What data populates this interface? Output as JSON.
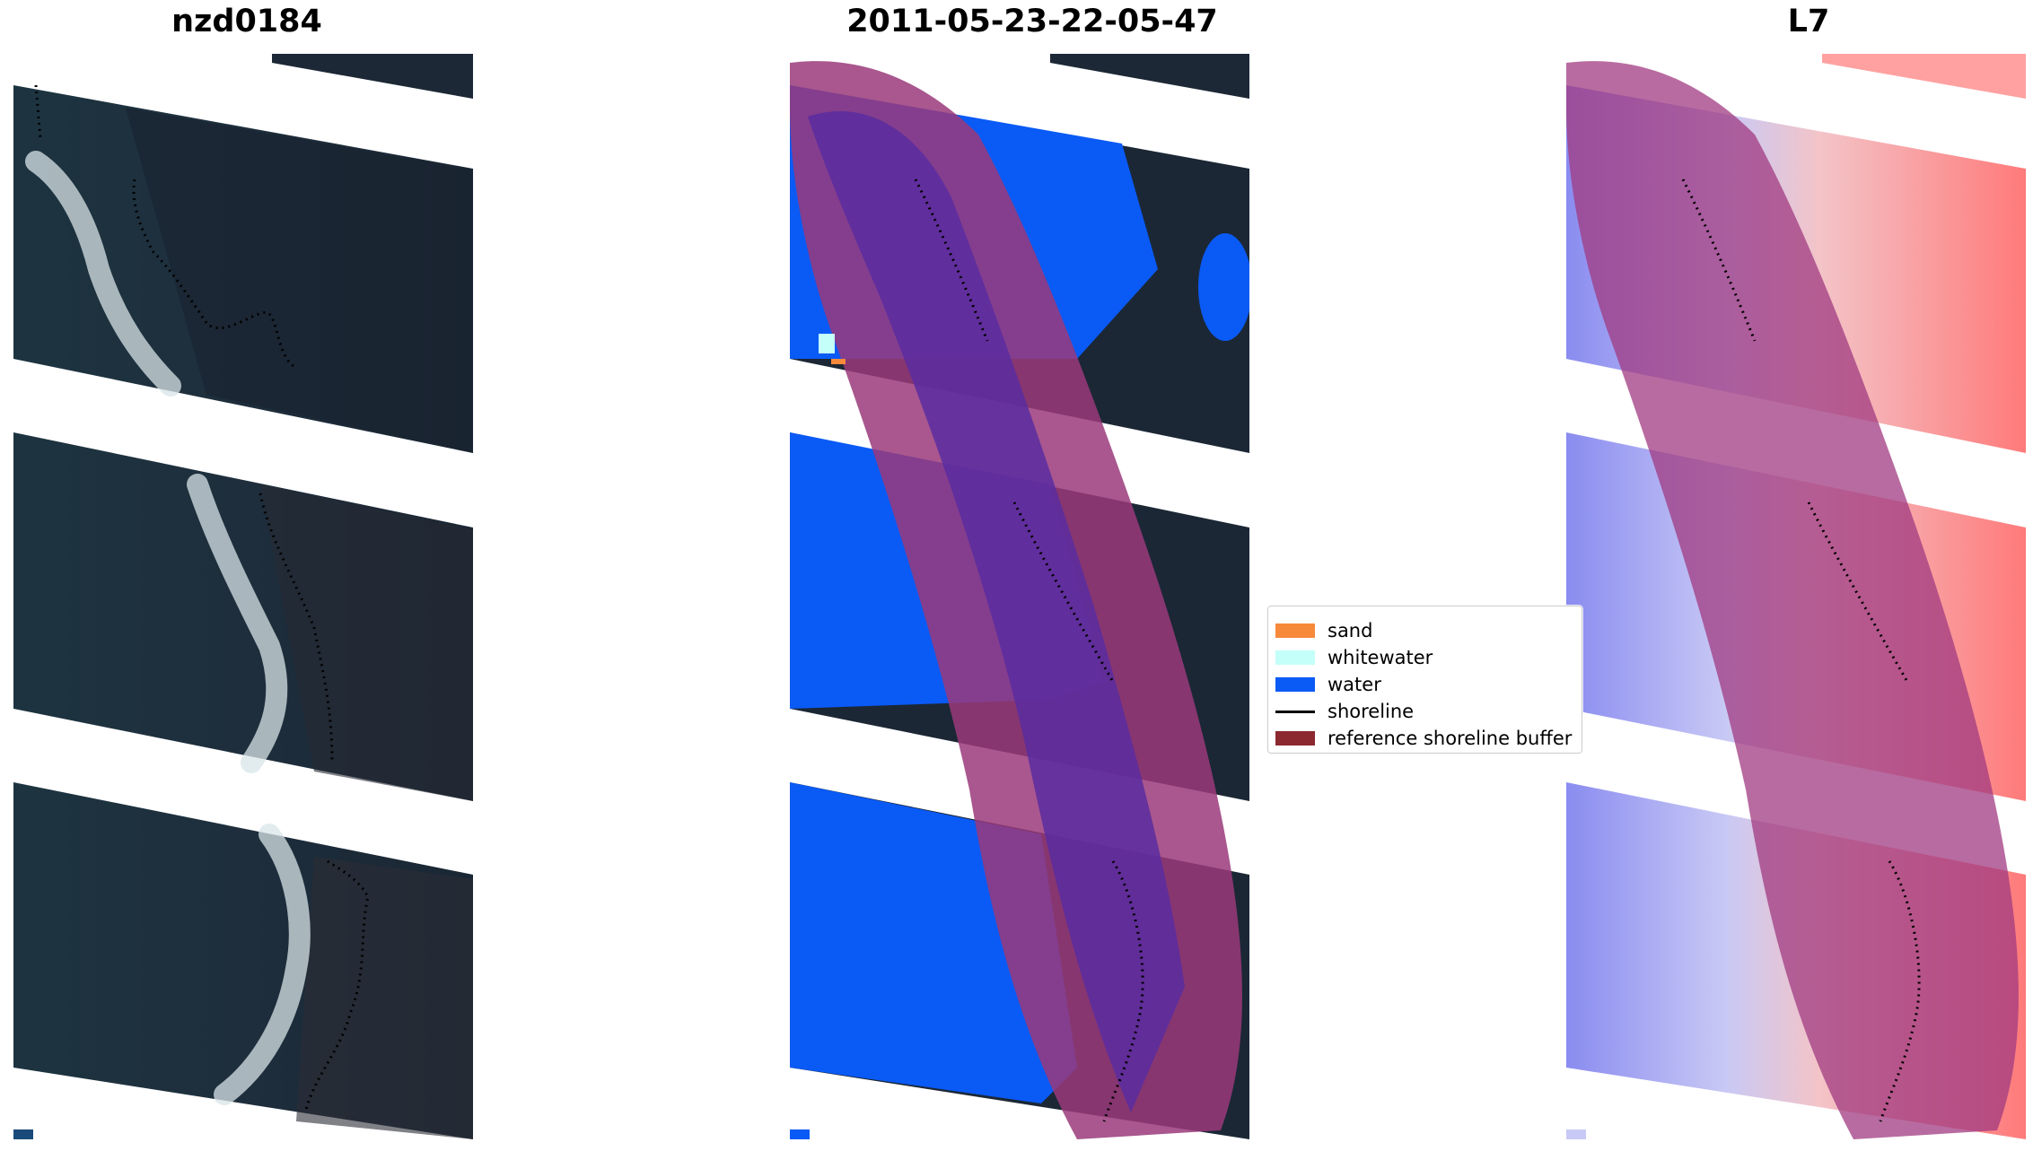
{
  "panels": [
    {
      "title": "nzd0184"
    },
    {
      "title": "2011-05-23-22-05-47"
    },
    {
      "title": "L7"
    }
  ],
  "legend": {
    "items": [
      {
        "label": "sand",
        "color": "#f7893a",
        "kind": "patch"
      },
      {
        "label": "whitewater",
        "color": "#c4fff9",
        "kind": "patch"
      },
      {
        "label": "water",
        "color": "#0a5af5",
        "kind": "patch"
      },
      {
        "label": "shoreline",
        "color": "#000000",
        "kind": "line"
      },
      {
        "label": "reference shoreline buffer",
        "color": "#8c2830",
        "kind": "patch"
      }
    ]
  },
  "colors": {
    "imagery_dark": "#1c2a3a",
    "imagery_water": "#1f3a44",
    "buffer_overlay": "#b0507a",
    "water_class": "#0a5af5",
    "index_positive": "#ff6060",
    "index_negative": "#6060ff"
  }
}
